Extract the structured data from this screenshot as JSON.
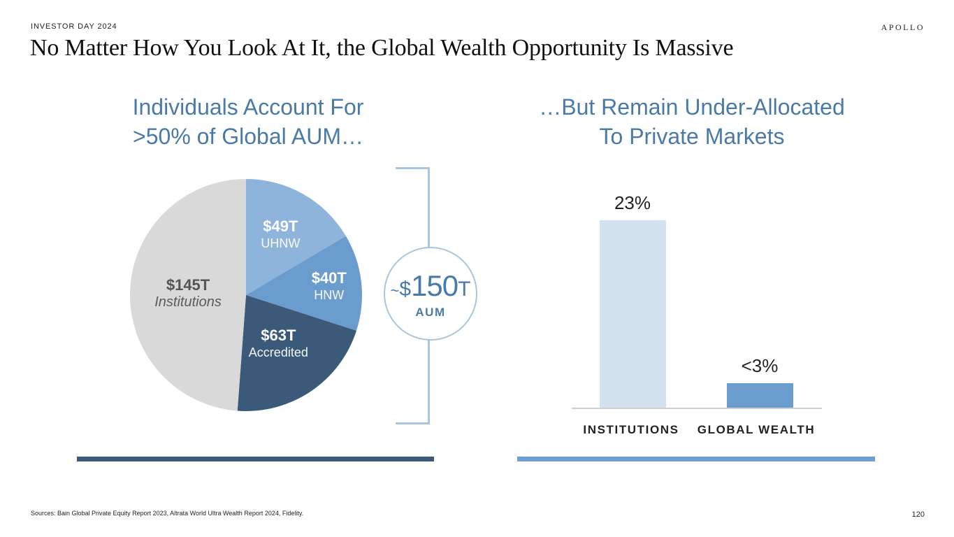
{
  "header": {
    "eyebrow": "INVESTOR DAY 2024",
    "brand": "APOLLO",
    "title": "No Matter How You Look At It, the Global Wealth Opportunity Is Massive"
  },
  "left": {
    "subhead_line1": "Individuals Account For",
    "subhead_line2": ">50% of Global AUM…"
  },
  "right": {
    "subhead_line1": "…But Remain Under-Allocated",
    "subhead_line2": "To Private Markets"
  },
  "callout": {
    "tilde": "~",
    "currency": "$",
    "number": "150",
    "unit": "T",
    "label": "AUM"
  },
  "chart_data": [
    {
      "type": "pie",
      "unit": "$T",
      "slices": [
        {
          "value_label": "$49T",
          "category": "UHNW",
          "value": 49,
          "color": "#8fb4db",
          "label_color": "#ffffff"
        },
        {
          "value_label": "$40T",
          "category": "HNW",
          "value": 40,
          "color": "#6a9ccd",
          "label_color": "#ffffff"
        },
        {
          "value_label": "$63T",
          "category": "Accredited",
          "value": 63,
          "color": "#3b5a7a",
          "label_color": "#ffffff"
        },
        {
          "value_label": "$145T",
          "category": "Institutions",
          "value": 145,
          "color": "#d9d9d9",
          "label_color": "#555555"
        }
      ]
    },
    {
      "type": "bar",
      "categories": [
        "INSTITUTIONS",
        "GLOBAL WEALTH"
      ],
      "values": [
        23,
        3
      ],
      "value_labels": [
        "23%",
        "<3%"
      ],
      "colors": [
        "#d4e2f0",
        "#6a9ccd"
      ],
      "ylim": [
        0,
        23
      ]
    }
  ],
  "footer": {
    "sources": "Sources: Bain Global Private Equity Report 2023, Altrata World Ultra Wealth Report 2024, Fidelity.",
    "page_number": "120"
  }
}
